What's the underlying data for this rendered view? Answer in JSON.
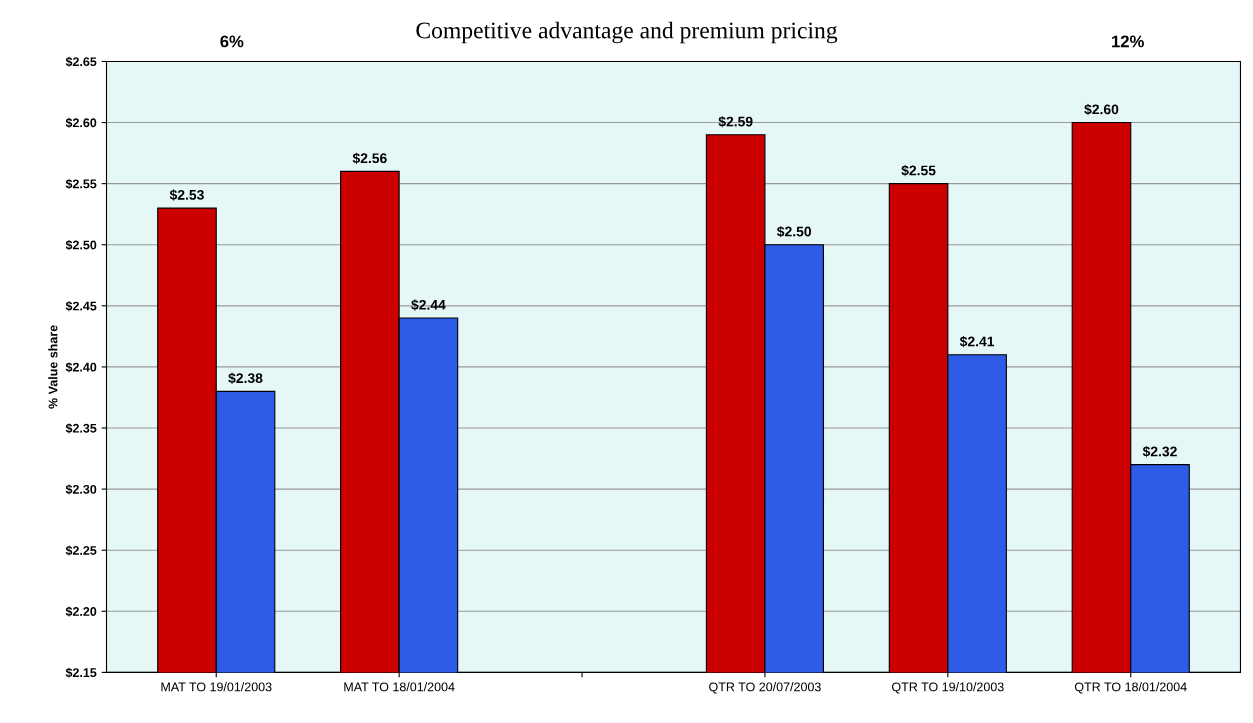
{
  "chart_data": {
    "type": "bar",
    "title": "Competitive advantage and premium pricing",
    "ylabel": "% Value share",
    "categories": [
      "MAT TO 19/01/2003",
      "MAT TO 18/01/2004",
      null,
      "QTR TO 20/07/2003",
      "QTR TO 19/10/2003",
      "QTR TO 18/01/2004"
    ],
    "series": [
      {
        "color": "#cc0000",
        "values": [
          2.53,
          2.56,
          null,
          2.59,
          2.55,
          2.6
        ],
        "value_labels": [
          "$2.53",
          "$2.56",
          null,
          "$2.59",
          "$2.55",
          "$2.60"
        ]
      },
      {
        "color": "#2e5ce6",
        "values": [
          2.38,
          2.44,
          null,
          2.5,
          2.41,
          2.32
        ],
        "value_labels": [
          "$2.38",
          "$2.44",
          null,
          "$2.50",
          "$2.41",
          "$2.32"
        ]
      }
    ],
    "ylim": [
      2.15,
      2.65
    ],
    "yticks": [
      {
        "value": 2.15,
        "label": "$2.15"
      },
      {
        "value": 2.2,
        "label": "$2.20"
      },
      {
        "value": 2.25,
        "label": "$2.25"
      },
      {
        "value": 2.3,
        "label": "$2.30"
      },
      {
        "value": 2.35,
        "label": "$2.35"
      },
      {
        "value": 2.4,
        "label": "$2.40"
      },
      {
        "value": 2.45,
        "label": "$2.45"
      },
      {
        "value": 2.5,
        "label": "$2.50"
      },
      {
        "value": 2.55,
        "label": "$2.55"
      },
      {
        "value": 2.6,
        "label": "$2.60"
      },
      {
        "value": 2.65,
        "label": "$2.65"
      }
    ],
    "grid": "y",
    "annotations": [
      "6%",
      "12%"
    ]
  }
}
